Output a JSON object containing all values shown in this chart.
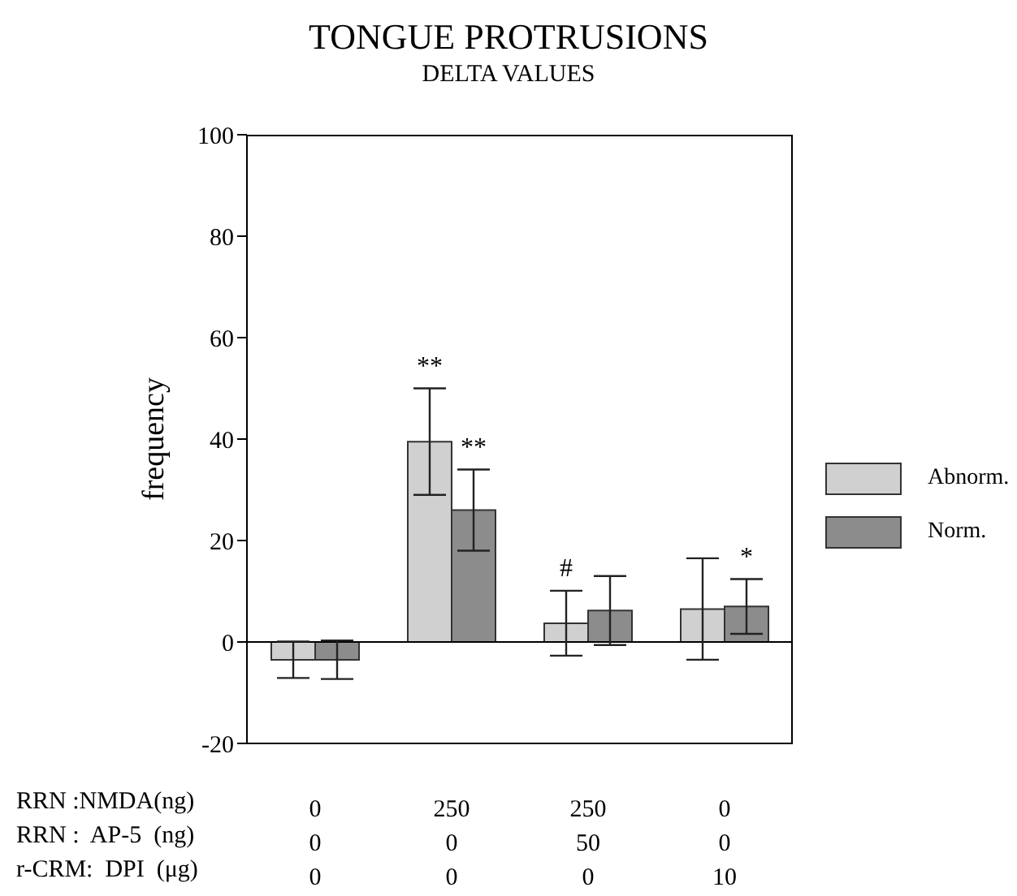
{
  "chart_data": {
    "type": "bar",
    "title": "TONGUE PROTRUSIONS",
    "subtitle": "DELTA VALUES",
    "ylabel": "frequency",
    "categories": [
      "0\n0\n0",
      "250\n0\n0",
      "250\n50\n0",
      "0\n0\n10"
    ],
    "series": [
      {
        "name": "Abnorm.",
        "color": "#d0d0d0",
        "values": [
          -3.5,
          39.5,
          3.7,
          6.5
        ],
        "errors": [
          3.6,
          10.5,
          6.4,
          10
        ]
      },
      {
        "name": "Norm.",
        "color": "#8c8c8c",
        "values": [
          -3.5,
          26,
          6.2,
          7
        ],
        "errors": [
          3.8,
          8,
          6.8,
          5.4
        ]
      }
    ],
    "ylim": [
      -20,
      100
    ],
    "yticks": [
      -20,
      0,
      20,
      40,
      60,
      80,
      100
    ],
    "grid": false,
    "legend": "right",
    "ref_lines": [
      {
        "axis": "y",
        "value": 0,
        "color": "#000000"
      }
    ],
    "annotations": [
      "RRN :NMDA(ng)",
      "RRN :  AP-5  (ng)",
      "r-CRM:  DPI  (μg)",
      {
        "text": "**",
        "x": "250\n0\n0",
        "y": 50
      },
      {
        "text": "**",
        "x": "250\n0\n0",
        "y": 34
      },
      {
        "text": "#",
        "x": "250\n50\n0",
        "y": 10.1
      },
      {
        "text": "*",
        "x": "0\n0\n10",
        "y": 12.4
      }
    ]
  }
}
